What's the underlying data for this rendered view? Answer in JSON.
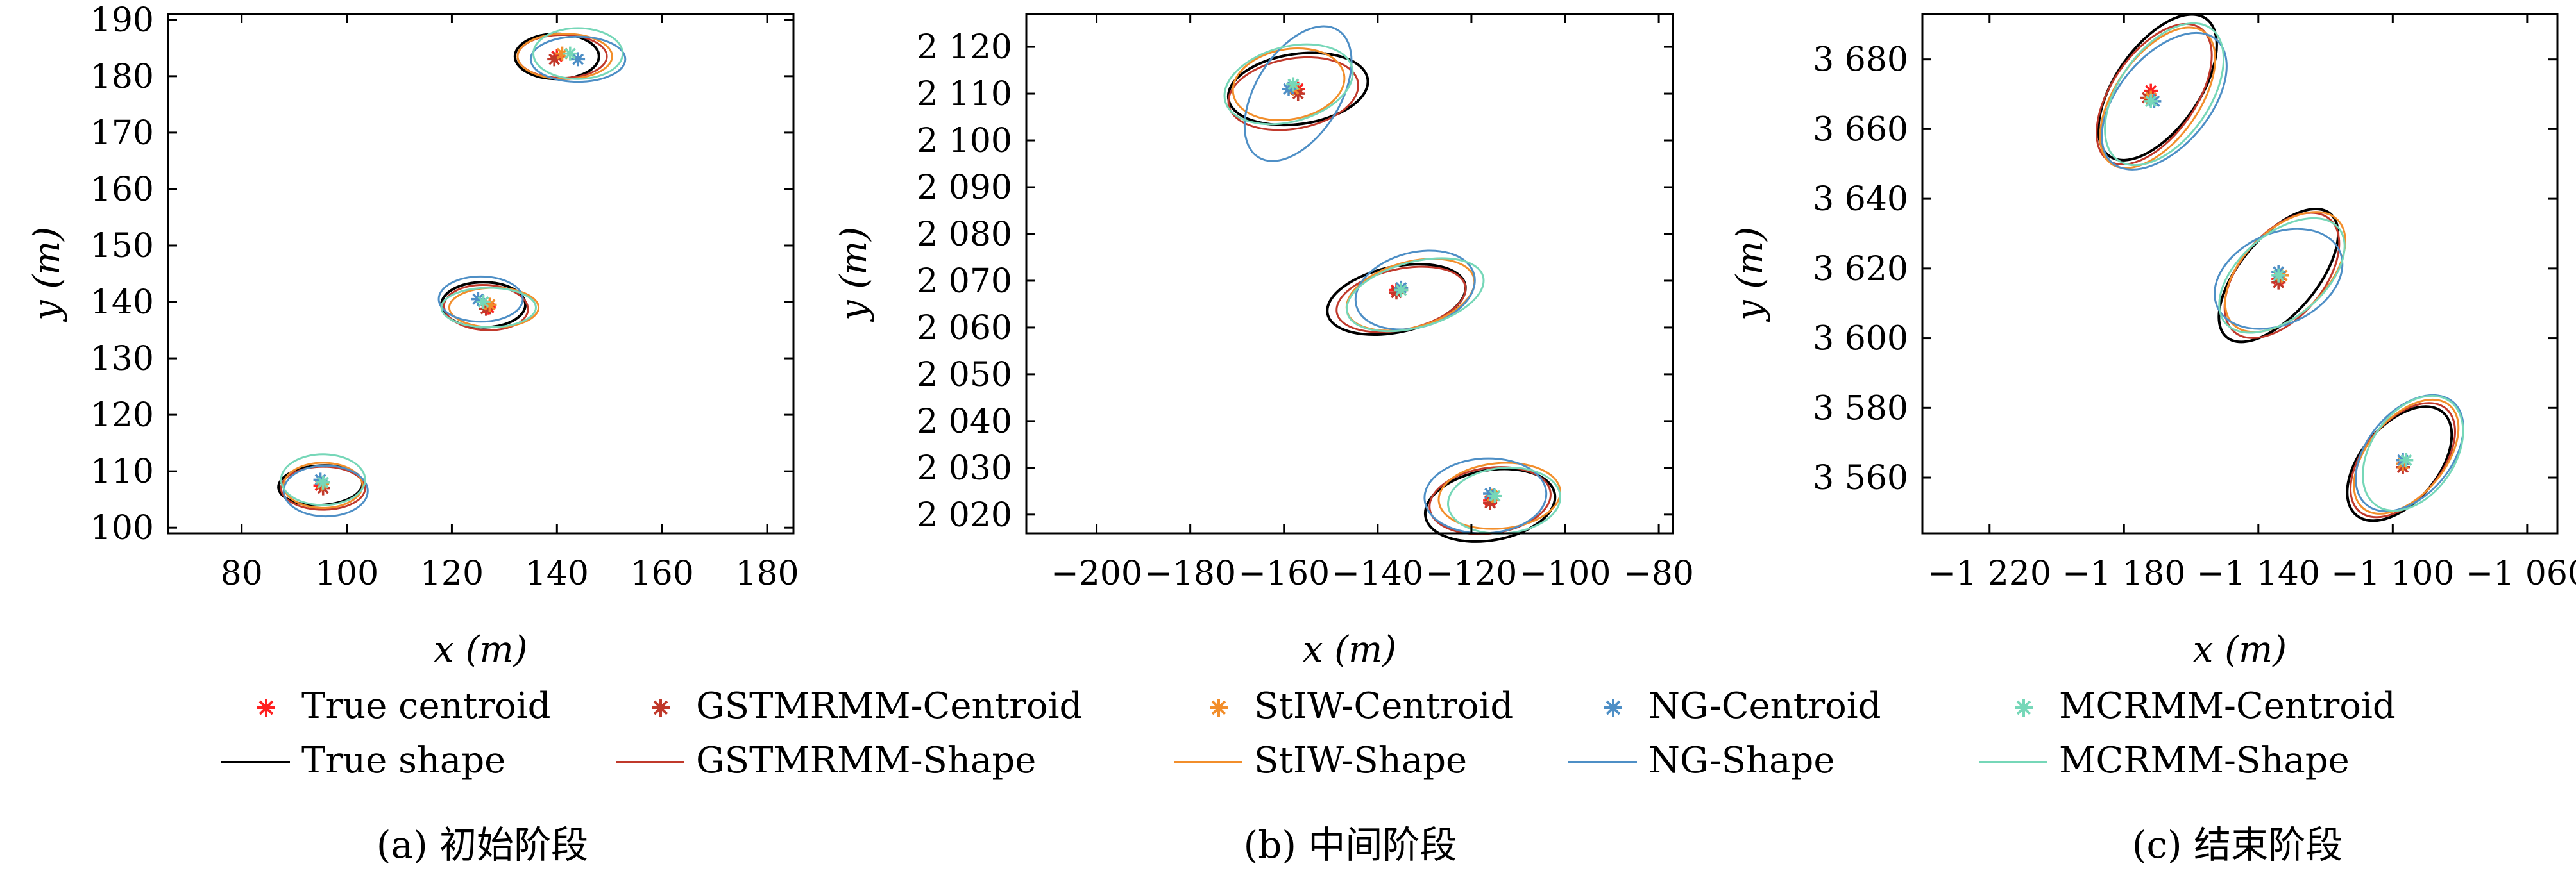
{
  "colors": {
    "true": "#000000",
    "gstmrmm": "#c0392b",
    "stiw": "#f28e2b",
    "ng": "#4e8fc6",
    "mcrmm": "#76d7b8",
    "true_centroid": "#ff2020"
  },
  "legend": {
    "rows": [
      [
        {
          "label": "True centroid",
          "kind": "marker",
          "color": "#ff2020"
        },
        {
          "label": "GSTMRMM-Centroid",
          "kind": "marker",
          "color": "#c0392b"
        },
        {
          "label": "StIW-Centroid",
          "kind": "marker",
          "color": "#f28e2b"
        },
        {
          "label": "NG-Centroid",
          "kind": "marker",
          "color": "#4e8fc6"
        },
        {
          "label": "MCRMM-Centroid",
          "kind": "marker",
          "color": "#76d7b8"
        }
      ],
      [
        {
          "label": "True shape",
          "kind": "line",
          "color": "#000000"
        },
        {
          "label": "GSTMRMM-Shape",
          "kind": "line",
          "color": "#c0392b"
        },
        {
          "label": "StIW-Shape",
          "kind": "line",
          "color": "#f28e2b"
        },
        {
          "label": "NG-Shape",
          "kind": "line",
          "color": "#4e8fc6"
        },
        {
          "label": "MCRMM-Shape",
          "kind": "line",
          "color": "#76d7b8"
        }
      ]
    ]
  },
  "chart_data": [
    {
      "type": "scatter",
      "caption": "(a) 初始阶段",
      "xlabel": "x (m)",
      "ylabel": "y (m)",
      "xlim": [
        66,
        185
      ],
      "ylim": [
        99,
        191
      ],
      "xticks": [
        80,
        100,
        120,
        140,
        160,
        180
      ],
      "yticks": [
        100,
        110,
        120,
        130,
        140,
        150,
        160,
        170,
        180,
        190
      ],
      "xtick_labels": [
        "80",
        "100",
        "120",
        "140",
        "160",
        "180"
      ],
      "ytick_labels": [
        "100",
        "110",
        "120",
        "130",
        "140",
        "150",
        "160",
        "170",
        "180",
        "190"
      ],
      "grid": false,
      "targets": [
        {
          "true_centroid": [
            95,
            107.5
          ],
          "centroids": {
            "gstmrmm": [
              95.5,
              107
            ],
            "stiw": [
              95.3,
              107.8
            ],
            "ng": [
              95,
              108.5
            ],
            "mcrmm": [
              95.5,
              108
            ]
          },
          "shapes": {
            "true": {
              "c": [
                95,
                107.5
              ],
              "a": 8,
              "b": 3.5,
              "angle": 3
            },
            "gstmrmm": {
              "c": [
                95.5,
                107
              ],
              "a": 8,
              "b": 3.8,
              "angle": 0
            },
            "stiw": {
              "c": [
                95.5,
                107.5
              ],
              "a": 7.5,
              "b": 4,
              "angle": 0
            },
            "ng": {
              "c": [
                96,
                106.5
              ],
              "a": 8,
              "b": 4.5,
              "angle": 0
            },
            "mcrmm": {
              "c": [
                95.5,
                108.5
              ],
              "a": 8,
              "b": 4.5,
              "angle": 0
            }
          }
        },
        {
          "true_centroid": [
            127,
            139
          ],
          "centroids": {
            "gstmrmm": [
              126.5,
              138.8
            ],
            "stiw": [
              127.2,
              139.5
            ],
            "ng": [
              125,
              140.5
            ],
            "mcrmm": [
              126,
              140
            ]
          },
          "shapes": {
            "true": {
              "c": [
                126,
                139.5
              ],
              "a": 8,
              "b": 4,
              "angle": 0
            },
            "gstmrmm": {
              "c": [
                126.5,
                139
              ],
              "a": 8,
              "b": 4,
              "angle": -3
            },
            "stiw": {
              "c": [
                128,
                139
              ],
              "a": 8.5,
              "b": 3.5,
              "angle": 0
            },
            "ng": {
              "c": [
                125.5,
                140.5
              ],
              "a": 8,
              "b": 4,
              "angle": 0
            },
            "mcrmm": {
              "c": [
                127,
                139
              ],
              "a": 9,
              "b": 3.5,
              "angle": 0
            }
          }
        },
        {
          "true_centroid": [
            140,
            183.5
          ],
          "centroids": {
            "gstmrmm": [
              139.5,
              183
            ],
            "stiw": [
              141,
              184
            ],
            "ng": [
              144,
              183
            ],
            "mcrmm": [
              142.5,
              184
            ]
          },
          "shapes": {
            "true": {
              "c": [
                140,
                183.5
              ],
              "a": 8,
              "b": 4,
              "angle": 0
            },
            "gstmrmm": {
              "c": [
                141,
                183.5
              ],
              "a": 8.5,
              "b": 3.8,
              "angle": 0
            },
            "stiw": {
              "c": [
                141.5,
                183.5
              ],
              "a": 9,
              "b": 4,
              "angle": 0
            },
            "ng": {
              "c": [
                144,
                183
              ],
              "a": 9,
              "b": 4,
              "angle": 0
            },
            "mcrmm": {
              "c": [
                144,
                184
              ],
              "a": 8.5,
              "b": 4.5,
              "angle": 0
            }
          }
        }
      ]
    },
    {
      "type": "scatter",
      "caption": "(b) 中间阶段",
      "xlabel": "x (m)",
      "ylabel": "y (m)",
      "xlim": [
        -215,
        -77
      ],
      "ylim": [
        2016,
        2127
      ],
      "xticks": [
        -200,
        -180,
        -160,
        -140,
        -120,
        -100,
        -80
      ],
      "yticks": [
        2020,
        2030,
        2040,
        2050,
        2060,
        2070,
        2080,
        2090,
        2100,
        2110,
        2120
      ],
      "xtick_labels": [
        "−200",
        "−180",
        "−160",
        "−140",
        "−120",
        "−100",
        "−80"
      ],
      "ytick_labels": [
        "2 020",
        "2 030",
        "2 040",
        "2 050",
        "2 060",
        "2 070",
        "2 080",
        "2 090",
        "2 100",
        "2 110",
        "2 120"
      ],
      "grid": false,
      "targets": [
        {
          "true_centroid": [
            -157,
            2111
          ],
          "centroids": {
            "gstmrmm": [
              -157,
              2110
            ],
            "stiw": [
              -158,
              2111
            ],
            "ng": [
              -159,
              2111
            ],
            "mcrmm": [
              -158,
              2112
            ]
          },
          "shapes": {
            "true": {
              "c": [
                -157,
                2111
              ],
              "a": 15,
              "b": 7.5,
              "angle": 8
            },
            "gstmrmm": {
              "c": [
                -158,
                2110
              ],
              "a": 14,
              "b": 7.5,
              "angle": 10
            },
            "stiw": {
              "c": [
                -159,
                2112
              ],
              "a": 12,
              "b": 7.5,
              "angle": 10
            },
            "ng": {
              "c": [
                -157,
                2110
              ],
              "a": 16,
              "b": 9,
              "angle": 58
            },
            "mcrmm": {
              "c": [
                -159,
                2112
              ],
              "a": 14,
              "b": 8,
              "angle": 15
            }
          }
        },
        {
          "true_centroid": [
            -136,
            2068
          ],
          "centroids": {
            "gstmrmm": [
              -136,
              2067.5
            ],
            "stiw": [
              -135,
              2068
            ],
            "ng": [
              -135,
              2068.5
            ],
            "mcrmm": [
              -135,
              2068
            ]
          },
          "shapes": {
            "true": {
              "c": [
                -136,
                2066
              ],
              "a": 15,
              "b": 7,
              "angle": 12
            },
            "gstmrmm": {
              "c": [
                -135,
                2066
              ],
              "a": 14,
              "b": 6.5,
              "angle": 12
            },
            "stiw": {
              "c": [
                -133,
                2067
              ],
              "a": 14,
              "b": 7,
              "angle": 15
            },
            "ng": {
              "c": [
                -132,
                2068
              ],
              "a": 13,
              "b": 8,
              "angle": 15
            },
            "mcrmm": {
              "c": [
                -132,
                2067
              ],
              "a": 15,
              "b": 7,
              "angle": 15
            }
          }
        },
        {
          "true_centroid": [
            -116,
            2023
          ],
          "centroids": {
            "gstmrmm": [
              -116,
              2022.5
            ],
            "stiw": [
              -115.5,
              2024
            ],
            "ng": [
              -116,
              2024.5
            ],
            "mcrmm": [
              -115,
              2024
            ]
          },
          "shapes": {
            "true": {
              "c": [
                -116,
                2022
              ],
              "a": 14,
              "b": 7.5,
              "angle": 10
            },
            "gstmrmm": {
              "c": [
                -116,
                2023
              ],
              "a": 13,
              "b": 7,
              "angle": 8
            },
            "stiw": {
              "c": [
                -114,
                2024
              ],
              "a": 13,
              "b": 7,
              "angle": 5
            },
            "ng": {
              "c": [
                -117,
                2024
              ],
              "a": 13,
              "b": 8,
              "angle": 3
            },
            "mcrmm": {
              "c": [
                -113,
                2023
              ],
              "a": 12,
              "b": 7,
              "angle": 5
            }
          }
        }
      ]
    },
    {
      "type": "scatter",
      "caption": "(c) 结束阶段",
      "xlabel": "x (m)",
      "ylabel": "y (m)",
      "xlim": [
        -1240,
        -1051
      ],
      "ylim": [
        3544,
        3693
      ],
      "xticks": [
        -1220,
        -1180,
        -1140,
        -1100,
        -1060
      ],
      "yticks": [
        3560,
        3580,
        3600,
        3620,
        3640,
        3660,
        3680
      ],
      "xtick_labels": [
        "−1 220",
        "−1 180",
        "−1 140",
        "−1 100",
        "−1 060"
      ],
      "ytick_labels": [
        "3 560",
        "3 580",
        "3 600",
        "3 620",
        "3 640",
        "3 660",
        "3 680"
      ],
      "grid": false,
      "targets": [
        {
          "true_centroid": [
            -1172,
            3671
          ],
          "centroids": {
            "gstmrmm": [
              -1173,
              3669
            ],
            "stiw": [
              -1172,
              3669
            ],
            "ng": [
              -1171,
              3668
            ],
            "mcrmm": [
              -1172,
              3668
            ]
          },
          "shapes": {
            "true": {
              "c": [
                -1170,
                3672
              ],
              "a": 25,
              "b": 12,
              "angle": 55
            },
            "gstmrmm": {
              "c": [
                -1171,
                3670
              ],
              "a": 24,
              "b": 12,
              "angle": 55
            },
            "stiw": {
              "c": [
                -1170,
                3669
              ],
              "a": 24,
              "b": 12,
              "angle": 55
            },
            "ng": {
              "c": [
                -1168,
                3668
              ],
              "a": 24,
              "b": 13,
              "angle": 50
            },
            "mcrmm": {
              "c": [
                -1168,
                3670
              ],
              "a": 24,
              "b": 13,
              "angle": 55
            }
          }
        },
        {
          "true_centroid": [
            -1134,
            3617
          ],
          "centroids": {
            "gstmrmm": [
              -1134,
              3616
            ],
            "stiw": [
              -1133,
              3618
            ],
            "ng": [
              -1134,
              3619
            ],
            "mcrmm": [
              -1134,
              3618
            ]
          },
          "shapes": {
            "true": {
              "c": [
                -1134,
                3618
              ],
              "a": 24,
              "b": 11,
              "angle": 50
            },
            "gstmrmm": {
              "c": [
                -1133,
                3618
              ],
              "a": 22,
              "b": 12,
              "angle": 50
            },
            "stiw": {
              "c": [
                -1132,
                3619
              ],
              "a": 22,
              "b": 12,
              "angle": 45
            },
            "ng": {
              "c": [
                -1134,
                3617
              ],
              "a": 20,
              "b": 13,
              "angle": 25
            },
            "mcrmm": {
              "c": [
                -1133,
                3618
              ],
              "a": 22,
              "b": 12,
              "angle": 40
            }
          }
        },
        {
          "true_centroid": [
            -1097,
            3563
          ],
          "centroids": {
            "gstmrmm": [
              -1097,
              3563
            ],
            "stiw": [
              -1097,
              3564
            ],
            "ng": [
              -1097,
              3565
            ],
            "mcrmm": [
              -1096,
              3565
            ]
          },
          "shapes": {
            "true": {
              "c": [
                -1098,
                3564
              ],
              "a": 20,
              "b": 11,
              "angle": 50
            },
            "gstmrmm": {
              "c": [
                -1097,
                3565
              ],
              "a": 20,
              "b": 11,
              "angle": 50
            },
            "stiw": {
              "c": [
                -1096,
                3566
              ],
              "a": 20,
              "b": 11,
              "angle": 50
            },
            "ng": {
              "c": [
                -1095,
                3567
              ],
              "a": 20,
              "b": 12,
              "angle": 50
            },
            "mcrmm": {
              "c": [
                -1094,
                3567
              ],
              "a": 19,
              "b": 12,
              "angle": 55
            }
          }
        }
      ]
    }
  ]
}
